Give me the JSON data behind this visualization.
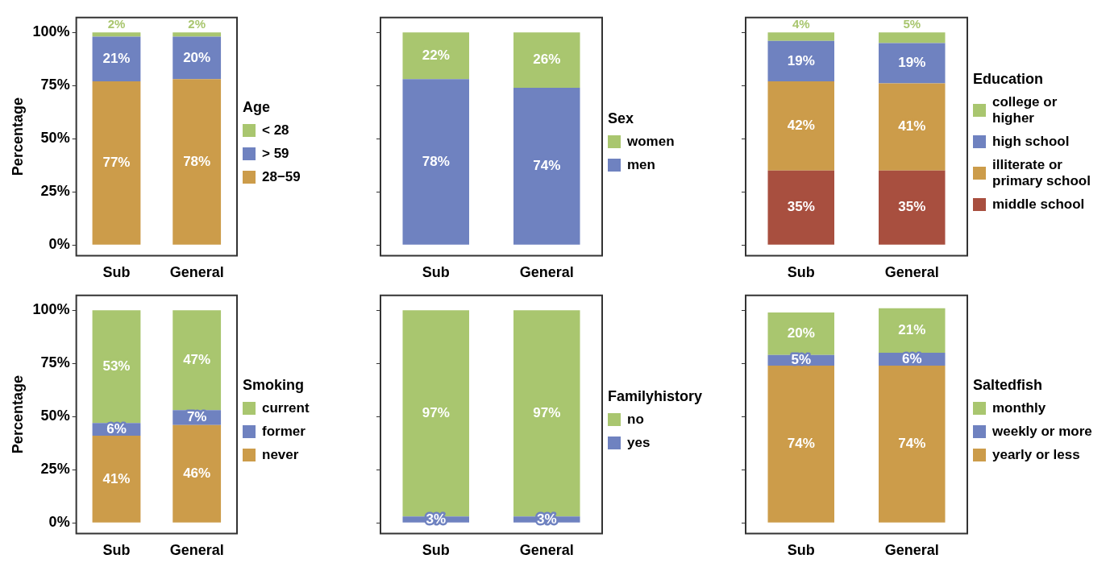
{
  "chart_data": [
    {
      "type": "bar",
      "stacked": true,
      "ylabel": "Percentage",
      "legend_title": "Age",
      "legend": "right",
      "grid": false,
      "categories": [
        "Sub",
        "General"
      ],
      "ylim": [
        -5,
        107
      ],
      "yticks": [
        {
          "value": 0,
          "label": "0%"
        },
        {
          "value": 25,
          "label": "25%"
        },
        {
          "value": 50,
          "label": "50%"
        },
        {
          "value": 75,
          "label": "75%"
        },
        {
          "value": 100,
          "label": "100%"
        }
      ],
      "series": [
        {
          "name": "28−59",
          "color": "#cc9c4a",
          "values": [
            77,
            78
          ],
          "value_labels": [
            "77%",
            "78%"
          ]
        },
        {
          "name": "> 59",
          "color": "#6f82c0",
          "values": [
            21,
            20
          ],
          "value_labels": [
            "21%",
            "20%"
          ]
        },
        {
          "name": "< 28",
          "color": "#a9c66f",
          "values": [
            2,
            2
          ],
          "value_labels": [
            "2%",
            "2%"
          ]
        }
      ]
    },
    {
      "type": "bar",
      "stacked": true,
      "legend_title": "Sex",
      "legend": "right",
      "grid": false,
      "tick_labels": "x",
      "categories": [
        "Sub",
        "General"
      ],
      "ylim": [
        -5,
        107
      ],
      "yticks": [
        {
          "value": 0,
          "label": null
        },
        {
          "value": 25,
          "label": null
        },
        {
          "value": 50,
          "label": null
        },
        {
          "value": 75,
          "label": null
        },
        {
          "value": 100,
          "label": null
        }
      ],
      "series": [
        {
          "name": "men",
          "color": "#6f82c0",
          "values": [
            78,
            74
          ],
          "value_labels": [
            "78%",
            "74%"
          ]
        },
        {
          "name": "women",
          "color": "#a9c66f",
          "values": [
            22,
            26
          ],
          "value_labels": [
            "22%",
            "26%"
          ]
        }
      ]
    },
    {
      "type": "bar",
      "stacked": true,
      "legend_title": "Education",
      "legend": "right",
      "grid": false,
      "tick_labels": "x",
      "categories": [
        "Sub",
        "General"
      ],
      "ylim": [
        -5,
        107
      ],
      "yticks": [
        {
          "value": 0,
          "label": null
        },
        {
          "value": 25,
          "label": null
        },
        {
          "value": 50,
          "label": null
        },
        {
          "value": 75,
          "label": null
        },
        {
          "value": 100,
          "label": null
        }
      ],
      "series": [
        {
          "name": "middle school",
          "color": "#a84f3f",
          "values": [
            35,
            35
          ],
          "value_labels": [
            "35%",
            "35%"
          ]
        },
        {
          "name": "illiterate or primary school",
          "color": "#cc9c4a",
          "values": [
            42,
            41
          ],
          "value_labels": [
            "42%",
            "41%"
          ]
        },
        {
          "name": "high school",
          "color": "#6f82c0",
          "values": [
            19,
            19
          ],
          "value_labels": [
            "19%",
            "19%"
          ]
        },
        {
          "name": "college or higher",
          "color": "#a9c66f",
          "values": [
            4,
            5
          ],
          "value_labels": [
            "4%",
            "5%"
          ]
        }
      ]
    },
    {
      "type": "bar",
      "stacked": true,
      "ylabel": "Percentage",
      "legend_title": "Smoking",
      "legend": "right",
      "grid": false,
      "categories": [
        "Sub",
        "General"
      ],
      "ylim": [
        -5,
        107
      ],
      "yticks": [
        {
          "value": 0,
          "label": "0%"
        },
        {
          "value": 25,
          "label": "25%"
        },
        {
          "value": 50,
          "label": "50%"
        },
        {
          "value": 75,
          "label": "75%"
        },
        {
          "value": 100,
          "label": "100%"
        }
      ],
      "series": [
        {
          "name": "never",
          "color": "#cc9c4a",
          "values": [
            41,
            46
          ],
          "value_labels": [
            "41%",
            "46%"
          ]
        },
        {
          "name": "former",
          "color": "#6f82c0",
          "values": [
            6,
            7
          ],
          "value_labels": [
            "6%",
            "7%"
          ]
        },
        {
          "name": "current",
          "color": "#a9c66f",
          "values": [
            53,
            47
          ],
          "value_labels": [
            "53%",
            "47%"
          ]
        }
      ]
    },
    {
      "type": "bar",
      "stacked": true,
      "legend_title": "Familyhistory",
      "legend": "right",
      "grid": false,
      "tick_labels": "x",
      "categories": [
        "Sub",
        "General"
      ],
      "ylim": [
        -5,
        107
      ],
      "yticks": [
        {
          "value": 0,
          "label": null
        },
        {
          "value": 25,
          "label": null
        },
        {
          "value": 50,
          "label": null
        },
        {
          "value": 75,
          "label": null
        },
        {
          "value": 100,
          "label": null
        }
      ],
      "series": [
        {
          "name": "yes",
          "color": "#6f82c0",
          "values": [
            3,
            3
          ],
          "value_labels": [
            "3%",
            "3%"
          ]
        },
        {
          "name": "no",
          "color": "#a9c66f",
          "values": [
            97,
            97
          ],
          "value_labels": [
            "97%",
            "97%"
          ]
        }
      ]
    },
    {
      "type": "bar",
      "stacked": true,
      "legend_title": "Saltedfish",
      "legend": "right",
      "grid": false,
      "tick_labels": "x",
      "categories": [
        "Sub",
        "General"
      ],
      "ylim": [
        -5,
        107
      ],
      "yticks": [
        {
          "value": 0,
          "label": null
        },
        {
          "value": 25,
          "label": null
        },
        {
          "value": 50,
          "label": null
        },
        {
          "value": 75,
          "label": null
        },
        {
          "value": 100,
          "label": null
        }
      ],
      "series": [
        {
          "name": "yearly or less",
          "color": "#cc9c4a",
          "values": [
            74,
            74
          ],
          "value_labels": [
            "74%",
            "74%"
          ]
        },
        {
          "name": "weekly or more",
          "color": "#6f82c0",
          "values": [
            5,
            6
          ],
          "value_labels": [
            "5%",
            "6%"
          ]
        },
        {
          "name": "monthly",
          "color": "#a9c66f",
          "values": [
            20,
            21
          ],
          "value_labels": [
            "20%",
            "21%"
          ]
        }
      ]
    }
  ]
}
